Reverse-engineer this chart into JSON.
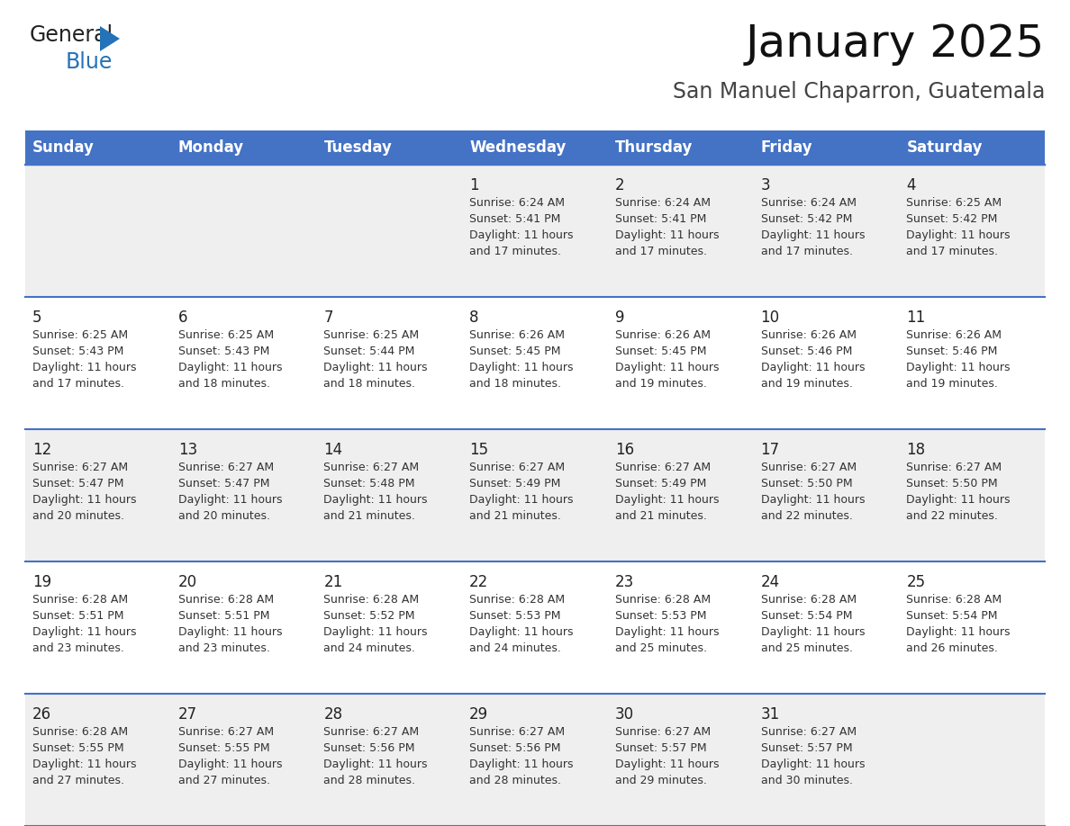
{
  "title": "January 2025",
  "subtitle": "San Manuel Chaparron, Guatemala",
  "header_color": "#4472C4",
  "header_text_color": "#FFFFFF",
  "days_of_week": [
    "Sunday",
    "Monday",
    "Tuesday",
    "Wednesday",
    "Thursday",
    "Friday",
    "Saturday"
  ],
  "background_color": "#FFFFFF",
  "cell_bg_even": "#EFEFEF",
  "cell_bg_odd": "#FFFFFF",
  "grid_line_color": "#4472C4",
  "day_number_color": "#222222",
  "text_color": "#333333",
  "title_color": "#111111",
  "subtitle_color": "#444444",
  "calendar": [
    [
      {
        "day": null,
        "sunrise": null,
        "sunset": null,
        "daylight": null
      },
      {
        "day": null,
        "sunrise": null,
        "sunset": null,
        "daylight": null
      },
      {
        "day": null,
        "sunrise": null,
        "sunset": null,
        "daylight": null
      },
      {
        "day": 1,
        "sunrise": "6:24 AM",
        "sunset": "5:41 PM",
        "daylight": "11 hours and 17 minutes."
      },
      {
        "day": 2,
        "sunrise": "6:24 AM",
        "sunset": "5:41 PM",
        "daylight": "11 hours and 17 minutes."
      },
      {
        "day": 3,
        "sunrise": "6:24 AM",
        "sunset": "5:42 PM",
        "daylight": "11 hours and 17 minutes."
      },
      {
        "day": 4,
        "sunrise": "6:25 AM",
        "sunset": "5:42 PM",
        "daylight": "11 hours and 17 minutes."
      }
    ],
    [
      {
        "day": 5,
        "sunrise": "6:25 AM",
        "sunset": "5:43 PM",
        "daylight": "11 hours and 17 minutes."
      },
      {
        "day": 6,
        "sunrise": "6:25 AM",
        "sunset": "5:43 PM",
        "daylight": "11 hours and 18 minutes."
      },
      {
        "day": 7,
        "sunrise": "6:25 AM",
        "sunset": "5:44 PM",
        "daylight": "11 hours and 18 minutes."
      },
      {
        "day": 8,
        "sunrise": "6:26 AM",
        "sunset": "5:45 PM",
        "daylight": "11 hours and 18 minutes."
      },
      {
        "day": 9,
        "sunrise": "6:26 AM",
        "sunset": "5:45 PM",
        "daylight": "11 hours and 19 minutes."
      },
      {
        "day": 10,
        "sunrise": "6:26 AM",
        "sunset": "5:46 PM",
        "daylight": "11 hours and 19 minutes."
      },
      {
        "day": 11,
        "sunrise": "6:26 AM",
        "sunset": "5:46 PM",
        "daylight": "11 hours and 19 minutes."
      }
    ],
    [
      {
        "day": 12,
        "sunrise": "6:27 AM",
        "sunset": "5:47 PM",
        "daylight": "11 hours and 20 minutes."
      },
      {
        "day": 13,
        "sunrise": "6:27 AM",
        "sunset": "5:47 PM",
        "daylight": "11 hours and 20 minutes."
      },
      {
        "day": 14,
        "sunrise": "6:27 AM",
        "sunset": "5:48 PM",
        "daylight": "11 hours and 21 minutes."
      },
      {
        "day": 15,
        "sunrise": "6:27 AM",
        "sunset": "5:49 PM",
        "daylight": "11 hours and 21 minutes."
      },
      {
        "day": 16,
        "sunrise": "6:27 AM",
        "sunset": "5:49 PM",
        "daylight": "11 hours and 21 minutes."
      },
      {
        "day": 17,
        "sunrise": "6:27 AM",
        "sunset": "5:50 PM",
        "daylight": "11 hours and 22 minutes."
      },
      {
        "day": 18,
        "sunrise": "6:27 AM",
        "sunset": "5:50 PM",
        "daylight": "11 hours and 22 minutes."
      }
    ],
    [
      {
        "day": 19,
        "sunrise": "6:28 AM",
        "sunset": "5:51 PM",
        "daylight": "11 hours and 23 minutes."
      },
      {
        "day": 20,
        "sunrise": "6:28 AM",
        "sunset": "5:51 PM",
        "daylight": "11 hours and 23 minutes."
      },
      {
        "day": 21,
        "sunrise": "6:28 AM",
        "sunset": "5:52 PM",
        "daylight": "11 hours and 24 minutes."
      },
      {
        "day": 22,
        "sunrise": "6:28 AM",
        "sunset": "5:53 PM",
        "daylight": "11 hours and 24 minutes."
      },
      {
        "day": 23,
        "sunrise": "6:28 AM",
        "sunset": "5:53 PM",
        "daylight": "11 hours and 25 minutes."
      },
      {
        "day": 24,
        "sunrise": "6:28 AM",
        "sunset": "5:54 PM",
        "daylight": "11 hours and 25 minutes."
      },
      {
        "day": 25,
        "sunrise": "6:28 AM",
        "sunset": "5:54 PM",
        "daylight": "11 hours and 26 minutes."
      }
    ],
    [
      {
        "day": 26,
        "sunrise": "6:28 AM",
        "sunset": "5:55 PM",
        "daylight": "11 hours and 27 minutes."
      },
      {
        "day": 27,
        "sunrise": "6:27 AM",
        "sunset": "5:55 PM",
        "daylight": "11 hours and 27 minutes."
      },
      {
        "day": 28,
        "sunrise": "6:27 AM",
        "sunset": "5:56 PM",
        "daylight": "11 hours and 28 minutes."
      },
      {
        "day": 29,
        "sunrise": "6:27 AM",
        "sunset": "5:56 PM",
        "daylight": "11 hours and 28 minutes."
      },
      {
        "day": 30,
        "sunrise": "6:27 AM",
        "sunset": "5:57 PM",
        "daylight": "11 hours and 29 minutes."
      },
      {
        "day": 31,
        "sunrise": "6:27 AM",
        "sunset": "5:57 PM",
        "daylight": "11 hours and 30 minutes."
      },
      {
        "day": null,
        "sunrise": null,
        "sunset": null,
        "daylight": null
      }
    ]
  ]
}
